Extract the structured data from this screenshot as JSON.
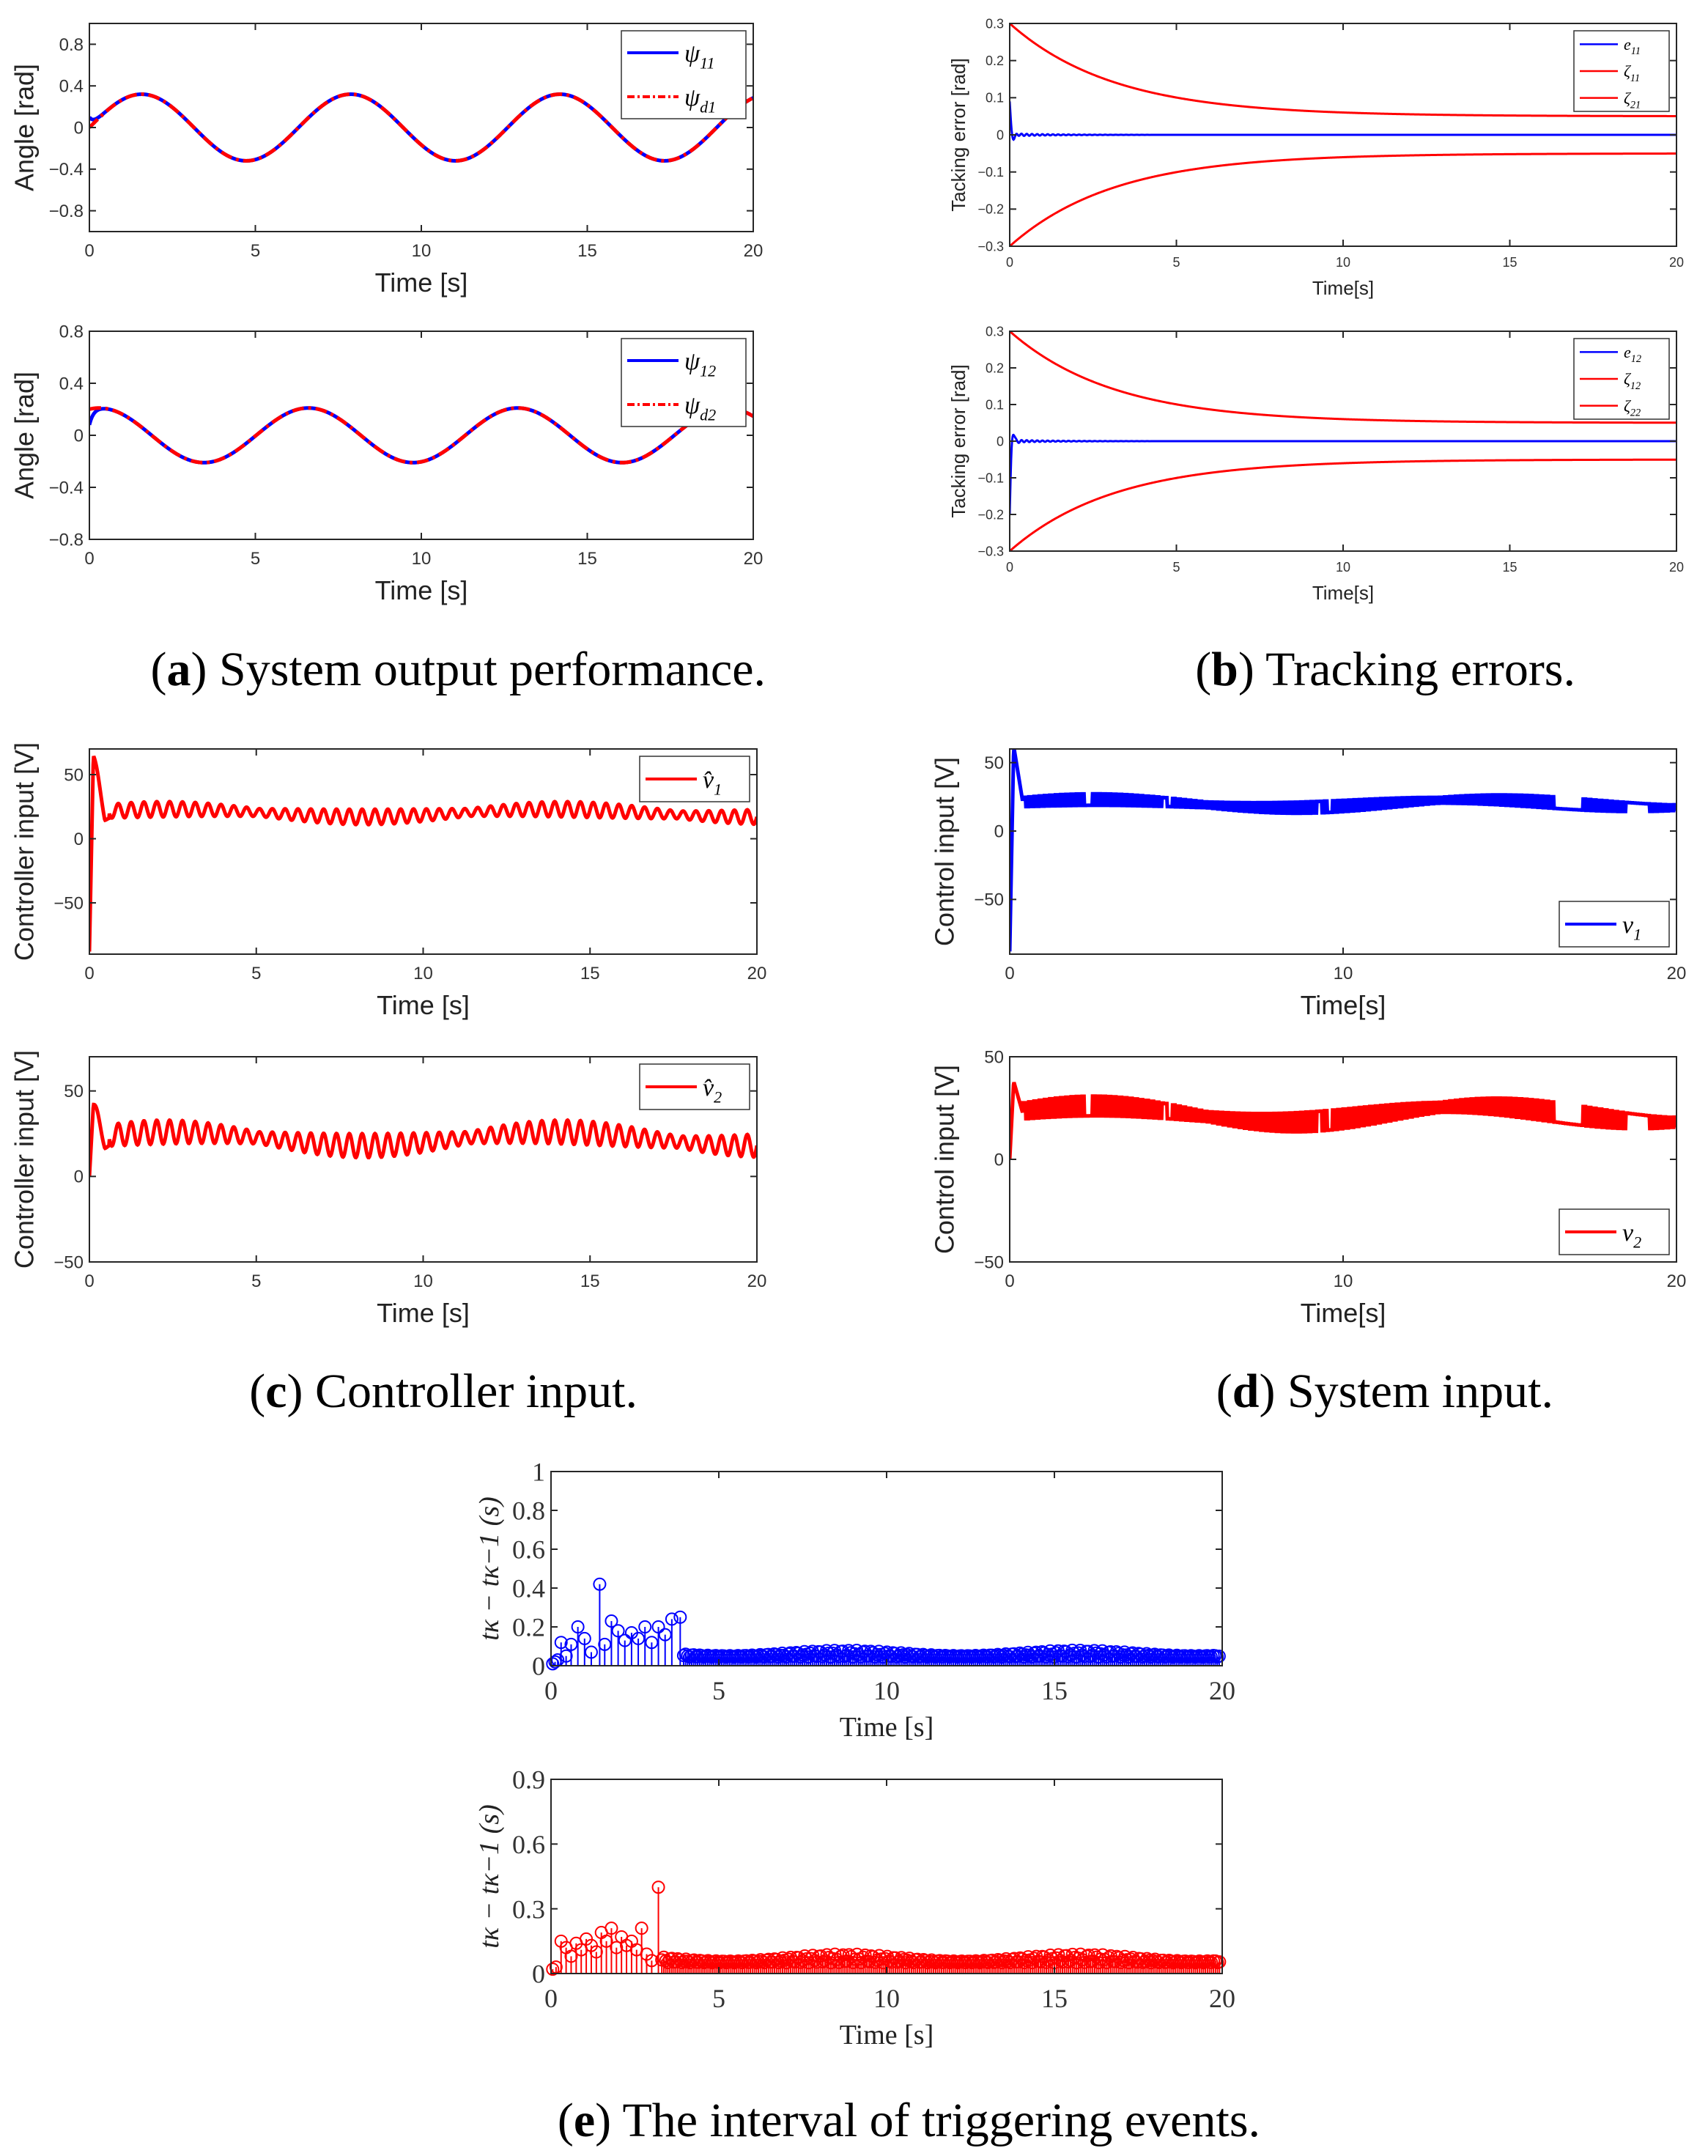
{
  "captions": {
    "a": {
      "letter": "a",
      "text": " System output performance."
    },
    "b": {
      "letter": "b",
      "text": " Tracking errors."
    },
    "c": {
      "letter": "c",
      "text": " Controller input."
    },
    "d": {
      "letter": "d",
      "text": " System input."
    },
    "e": {
      "letter": "e",
      "text": " The interval of triggering events."
    }
  },
  "colors": {
    "blue": "#0000ff",
    "red": "#ff0000"
  },
  "chart_data": [
    {
      "id": "a1",
      "type": "line",
      "xlabel": "Time [s]",
      "ylabel": "Angle [rad]",
      "xlim": [
        0,
        20
      ],
      "ylim": [
        -1,
        1
      ],
      "xticks": [
        "0",
        "5",
        "10",
        "15",
        "20"
      ],
      "xtick_values": [
        0,
        5,
        10,
        15,
        20
      ],
      "yticks": [
        "−0.8",
        "−0.4",
        "0",
        "0.4",
        "0.8"
      ],
      "ytick_values": [
        -0.8,
        -0.4,
        0,
        0.4,
        0.8
      ],
      "legend_position": "top-right",
      "series": [
        {
          "name": "ψ11",
          "legend_base": "ψ",
          "legend_sub": "11",
          "color": "#0000ff",
          "style": "solid",
          "function": "sine",
          "amplitude": 0.32,
          "frequency": 1.0,
          "phase": 0,
          "start": 0.1
        },
        {
          "name": "ψd1",
          "legend_base": "ψ",
          "legend_sub": "d1",
          "color": "#ff0000",
          "style": "dashdot",
          "function": "sine",
          "amplitude": 0.32,
          "frequency": 1.0,
          "phase": 0
        }
      ]
    },
    {
      "id": "a2",
      "type": "line",
      "xlabel": "Time [s]",
      "ylabel": "Angle [rad]",
      "xlim": [
        0,
        20
      ],
      "ylim": [
        -0.8,
        0.8
      ],
      "xticks": [
        "0",
        "5",
        "10",
        "15",
        "20"
      ],
      "xtick_values": [
        0,
        5,
        10,
        15,
        20
      ],
      "yticks": [
        "−0.8",
        "−0.4",
        "0",
        "0.4",
        "0.8"
      ],
      "ytick_values": [
        -0.8,
        -0.4,
        0,
        0.4,
        0.8
      ],
      "legend_position": "top-right",
      "series": [
        {
          "name": "ψ12",
          "legend_base": "ψ",
          "legend_sub": "12",
          "color": "#0000ff",
          "style": "solid",
          "function": "cosine",
          "amplitude": 0.21,
          "frequency": 1.0,
          "phase": 0,
          "start": 0.08
        },
        {
          "name": "ψd2",
          "legend_base": "ψ",
          "legend_sub": "d2",
          "color": "#ff0000",
          "style": "dashdot",
          "function": "cosine",
          "amplitude": 0.21,
          "frequency": 1.0,
          "phase": 0
        }
      ]
    },
    {
      "id": "b1",
      "type": "line",
      "xlabel": "Time[s]",
      "ylabel": "Tacking error [rad]",
      "xlim": [
        0,
        20
      ],
      "ylim": [
        -0.3,
        0.3
      ],
      "xticks": [
        "0",
        "5",
        "10",
        "15",
        "20"
      ],
      "xtick_values": [
        0,
        5,
        10,
        15,
        20
      ],
      "yticks": [
        "−0.3",
        "−0.2",
        "−0.1",
        "0",
        "0.1",
        "0.2",
        "0.3"
      ],
      "ytick_values": [
        -0.3,
        -0.2,
        -0.1,
        0,
        0.1,
        0.2,
        0.3
      ],
      "legend_position": "top-right",
      "series": [
        {
          "name": "e11",
          "legend_base": "e",
          "legend_sub": "11",
          "color": "#0000ff",
          "style": "solid",
          "function": "error",
          "initial": 0.09
        },
        {
          "name": "ζ11",
          "legend_base": "ζ",
          "legend_sub": "11",
          "color": "#ff0000",
          "style": "solid",
          "function": "bound",
          "initial": 0.3,
          "final": 0.05,
          "rate": 0.32
        },
        {
          "name": "ζ21",
          "legend_base": "ζ",
          "legend_sub": "21",
          "color": "#ff0000",
          "style": "solid",
          "function": "bound",
          "initial": -0.3,
          "final": -0.05,
          "rate": 0.32
        }
      ]
    },
    {
      "id": "b2",
      "type": "line",
      "xlabel": "Time[s]",
      "ylabel": "Tacking error [rad]",
      "xlim": [
        0,
        20
      ],
      "ylim": [
        -0.3,
        0.3
      ],
      "xticks": [
        "0",
        "5",
        "10",
        "15",
        "20"
      ],
      "xtick_values": [
        0,
        5,
        10,
        15,
        20
      ],
      "yticks": [
        "−0.3",
        "−0.2",
        "−0.1",
        "0",
        "0.1",
        "0.2",
        "0.3"
      ],
      "ytick_values": [
        -0.3,
        -0.2,
        -0.1,
        0,
        0.1,
        0.2,
        0.3
      ],
      "legend_position": "top-right",
      "series": [
        {
          "name": "e12",
          "legend_base": "e",
          "legend_sub": "12",
          "color": "#0000ff",
          "style": "solid",
          "function": "error",
          "initial": -0.2
        },
        {
          "name": "ζ12",
          "legend_base": "ζ",
          "legend_sub": "12",
          "color": "#ff0000",
          "style": "solid",
          "function": "bound",
          "initial": 0.3,
          "final": 0.05,
          "rate": 0.32
        },
        {
          "name": "ζ22",
          "legend_base": "ζ",
          "legend_sub": "22",
          "color": "#ff0000",
          "style": "solid",
          "function": "bound",
          "initial": -0.3,
          "final": -0.05,
          "rate": 0.32
        }
      ]
    },
    {
      "id": "c1",
      "type": "line",
      "xlabel": "Time [s]",
      "ylabel": "Controller input [V]",
      "xlim": [
        0,
        20
      ],
      "ylim": [
        -90,
        70
      ],
      "xticks": [
        "0",
        "5",
        "10",
        "15",
        "20"
      ],
      "xtick_values": [
        0,
        5,
        10,
        15,
        20
      ],
      "yticks": [
        "−50",
        "0",
        "50"
      ],
      "ytick_values": [
        -50,
        0,
        50
      ],
      "legend_position": "top-right",
      "series": [
        {
          "name": "v̂1",
          "legend_base": "v̂",
          "legend_sub": "1",
          "color": "#ff0000",
          "style": "solid",
          "function": "control",
          "start": -88,
          "peak": 65,
          "mean": 20,
          "ripple": 6,
          "drift": 3
        }
      ]
    },
    {
      "id": "c2",
      "type": "line",
      "xlabel": "Time [s]",
      "ylabel": "Controller input [V]",
      "xlim": [
        0,
        20
      ],
      "ylim": [
        -50,
        70
      ],
      "xticks": [
        "0",
        "5",
        "10",
        "15",
        "20"
      ],
      "xtick_values": [
        0,
        5,
        10,
        15,
        20
      ],
      "yticks": [
        "−50",
        "0",
        "50"
      ],
      "ytick_values": [
        -50,
        0,
        50
      ],
      "legend_position": "top-right",
      "series": [
        {
          "name": "v̂2",
          "legend_base": "v̂",
          "legend_sub": "2",
          "color": "#ff0000",
          "style": "solid",
          "function": "control",
          "start": 0,
          "peak": 42,
          "mean": 22,
          "ripple": 7,
          "drift": 4
        }
      ]
    },
    {
      "id": "d1",
      "type": "line",
      "xlabel": "Time[s]",
      "ylabel": "Control input [V]",
      "xlim": [
        0,
        20
      ],
      "ylim": [
        -90,
        60
      ],
      "xticks": [
        "0",
        "10",
        "20"
      ],
      "xtick_values": [
        0,
        10,
        20
      ],
      "yticks": [
        "−50",
        "0",
        "50"
      ],
      "ytick_values": [
        -50,
        0,
        50
      ],
      "legend_position": "bottom-right",
      "series": [
        {
          "name": "v1",
          "legend_base": "v",
          "legend_sub": "1",
          "color": "#0000ff",
          "style": "solid",
          "function": "held",
          "start": -88,
          "peak": 62,
          "mean": 20,
          "ripple": 7,
          "drift": 3
        }
      ]
    },
    {
      "id": "d2",
      "type": "line",
      "xlabel": "Time[s]",
      "ylabel": "Control input [V]",
      "xlim": [
        0,
        20
      ],
      "ylim": [
        -50,
        50
      ],
      "xticks": [
        "0",
        "10",
        "20"
      ],
      "xtick_values": [
        0,
        10,
        20
      ],
      "yticks": [
        "−50",
        "0",
        "50"
      ],
      "ytick_values": [
        -50,
        0,
        50
      ],
      "legend_position": "bottom-right",
      "series": [
        {
          "name": "v2",
          "legend_base": "v",
          "legend_sub": "2",
          "color": "#ff0000",
          "style": "solid",
          "function": "held",
          "start": 0,
          "peak": 38,
          "mean": 22,
          "ripple": 8,
          "drift": 4
        }
      ]
    },
    {
      "id": "e1",
      "type": "stem",
      "xlabel": "Time [s]",
      "ylabel": "tκ − tκ−1 (s)",
      "xlim": [
        0,
        20
      ],
      "ylim": [
        0,
        1
      ],
      "xticks": [
        "0",
        "5",
        "10",
        "15",
        "20"
      ],
      "xtick_values": [
        0,
        5,
        10,
        15,
        20
      ],
      "yticks": [
        "0",
        "0.2",
        "0.4",
        "0.6",
        "0.8",
        "1"
      ],
      "ytick_values": [
        0,
        0.2,
        0.4,
        0.6,
        0.8,
        1
      ],
      "series": [
        {
          "name": "",
          "color": "#0000ff",
          "early_x": [
            0.05,
            0.12,
            0.2,
            0.3,
            0.45,
            0.6,
            0.8,
            1.0,
            1.2,
            1.45,
            1.6,
            1.8,
            2.0,
            2.2,
            2.4,
            2.6,
            2.8,
            3.0,
            3.2,
            3.4,
            3.6,
            3.85
          ],
          "early_y": [
            0.01,
            0.02,
            0.03,
            0.12,
            0.05,
            0.11,
            0.2,
            0.14,
            0.07,
            0.42,
            0.11,
            0.23,
            0.18,
            0.13,
            0.17,
            0.14,
            0.2,
            0.12,
            0.2,
            0.16,
            0.24,
            0.25
          ],
          "late_start": 3.95,
          "late_step": 0.06,
          "late_base": 0.045,
          "late_amp": 0.035
        }
      ]
    },
    {
      "id": "e2",
      "type": "stem",
      "xlabel": "Time [s]",
      "ylabel": "tκ − tκ−1 (s)",
      "xlim": [
        0,
        20
      ],
      "ylim": [
        0,
        0.9
      ],
      "xticks": [
        "0",
        "5",
        "10",
        "15",
        "20"
      ],
      "xtick_values": [
        0,
        5,
        10,
        15,
        20
      ],
      "yticks": [
        "0",
        "0.3",
        "0.6",
        "0.9"
      ],
      "ytick_values": [
        0,
        0.3,
        0.6,
        0.9
      ],
      "series": [
        {
          "name": "",
          "color": "#ff0000",
          "early_x": [
            0.05,
            0.15,
            0.3,
            0.45,
            0.6,
            0.75,
            0.9,
            1.05,
            1.2,
            1.35,
            1.5,
            1.65,
            1.8,
            1.95,
            2.1,
            2.25,
            2.4,
            2.55,
            2.7,
            2.85,
            3.0,
            3.2
          ],
          "early_y": [
            0.02,
            0.03,
            0.15,
            0.12,
            0.08,
            0.14,
            0.11,
            0.16,
            0.13,
            0.1,
            0.19,
            0.15,
            0.21,
            0.12,
            0.17,
            0.13,
            0.15,
            0.11,
            0.21,
            0.09,
            0.06,
            0.4
          ],
          "late_start": 3.3,
          "late_step": 0.06,
          "late_base": 0.05,
          "late_amp": 0.04
        }
      ]
    }
  ]
}
